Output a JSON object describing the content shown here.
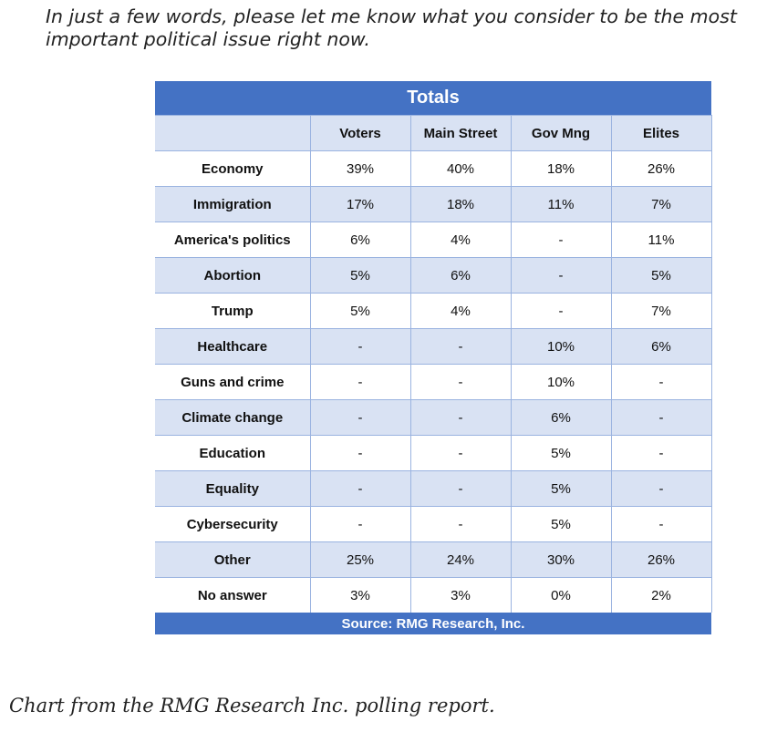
{
  "question": "In just a few words, please let me know what you consider to be the most important political issue right now.",
  "caption": "Chart from the RMG Research Inc. polling report.",
  "colors": {
    "header_blue": "#4472c4",
    "band_light": "#d9e2f3",
    "grid_line": "#9ab3e0"
  },
  "chart_data": {
    "type": "table",
    "title": "Totals",
    "source": "Source: RMG Research, Inc.",
    "columns": [
      "Voters",
      "Main Street",
      "Gov Mng",
      "Elites"
    ],
    "rows": [
      {
        "label": "Economy",
        "values": [
          "39%",
          "40%",
          "18%",
          "26%"
        ]
      },
      {
        "label": "Immigration",
        "values": [
          "17%",
          "18%",
          "11%",
          "7%"
        ]
      },
      {
        "label": "America's politics",
        "values": [
          "6%",
          "4%",
          "-",
          "11%"
        ]
      },
      {
        "label": "Abortion",
        "values": [
          "5%",
          "6%",
          "-",
          "5%"
        ]
      },
      {
        "label": "Trump",
        "values": [
          "5%",
          "4%",
          "-",
          "7%"
        ]
      },
      {
        "label": "Healthcare",
        "values": [
          "-",
          "-",
          "10%",
          "6%"
        ]
      },
      {
        "label": "Guns and crime",
        "values": [
          "-",
          "-",
          "10%",
          "-"
        ]
      },
      {
        "label": "Climate change",
        "values": [
          "-",
          "-",
          "6%",
          "-"
        ]
      },
      {
        "label": "Education",
        "values": [
          "-",
          "-",
          "5%",
          "-"
        ]
      },
      {
        "label": "Equality",
        "values": [
          "-",
          "-",
          "5%",
          "-"
        ]
      },
      {
        "label": "Cybersecurity",
        "values": [
          "-",
          "-",
          "5%",
          "-"
        ]
      },
      {
        "label": "Other",
        "values": [
          "25%",
          "24%",
          "30%",
          "26%"
        ]
      },
      {
        "label": "No answer",
        "values": [
          "3%",
          "3%",
          "0%",
          "2%"
        ]
      }
    ]
  }
}
